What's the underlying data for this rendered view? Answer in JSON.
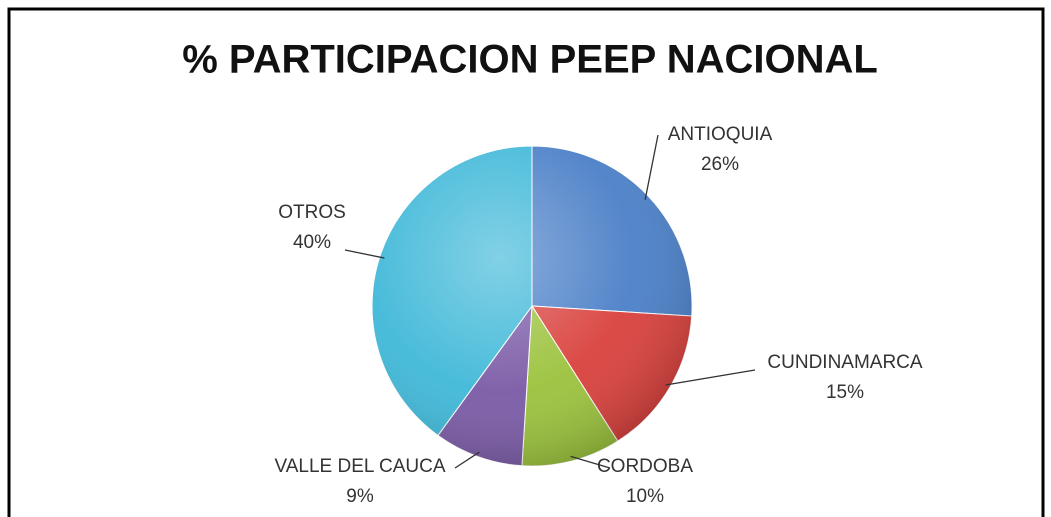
{
  "chart_data": {
    "type": "pie",
    "title": "% PARTICIPACION PEEP NACIONAL",
    "categories": [
      "ANTIOQUIA",
      "CUNDINAMARCA",
      "CORDOBA",
      "VALLE DEL CAUCA",
      "OTROS"
    ],
    "values": [
      26,
      15,
      10,
      9,
      40
    ],
    "value_labels": [
      "26%",
      "15%",
      "10%",
      "9%",
      "40%"
    ],
    "colors": [
      "#4a7fc7",
      "#d9403c",
      "#9bc23c",
      "#7a5aa6",
      "#3fb8d8"
    ]
  }
}
